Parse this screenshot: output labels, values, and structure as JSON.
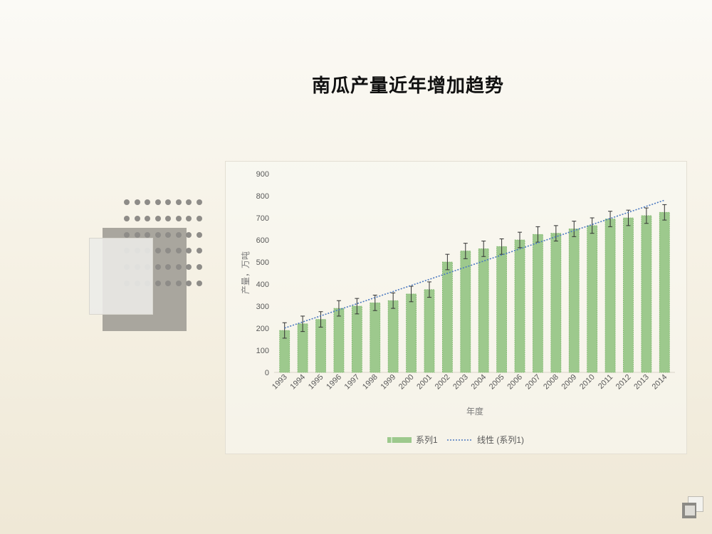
{
  "title": "南瓜产量近年增加趋势",
  "chart_data": {
    "type": "bar",
    "title": "南瓜产量近年增加趋势",
    "categories": [
      "1993",
      "1994",
      "1995",
      "1996",
      "1997",
      "1998",
      "1999",
      "2000",
      "2001",
      "2002",
      "2003",
      "2004",
      "2005",
      "2006",
      "2007",
      "2008",
      "2009",
      "2010",
      "2011",
      "2012",
      "2013",
      "2014"
    ],
    "series": [
      {
        "name": "系列1",
        "values": [
          190,
          220,
          240,
          290,
          300,
          315,
          325,
          355,
          375,
          500,
          550,
          560,
          570,
          600,
          625,
          630,
          650,
          665,
          695,
          700,
          710,
          725
        ]
      }
    ],
    "error": [
      35,
      35,
      35,
      35,
      35,
      35,
      35,
      35,
      35,
      35,
      35,
      35,
      35,
      35,
      35,
      35,
      35,
      35,
      35,
      35,
      35,
      35
    ],
    "trendline": {
      "name": "线性 (系列1)",
      "type": "linear"
    },
    "xlabel": "年度",
    "ylabel": "产量，万吨",
    "yticks": [
      0,
      100,
      200,
      300,
      400,
      500,
      600,
      700,
      800,
      900
    ],
    "ylim": [
      0,
      900
    ],
    "grid": false,
    "legend": "bottom",
    "colors": {
      "bar": "#9dc98d",
      "bar_edge": "#7fb86e",
      "trend": "#4a78c0",
      "error": "#333333"
    }
  }
}
